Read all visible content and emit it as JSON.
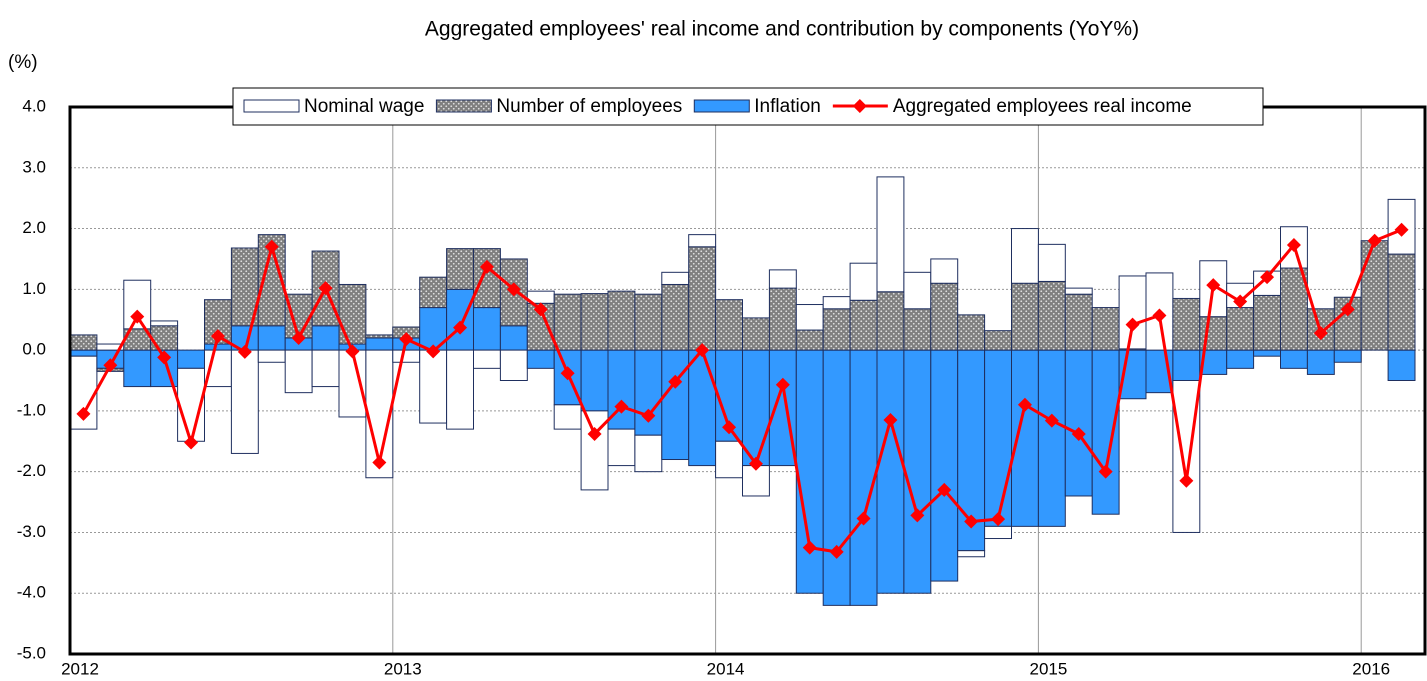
{
  "chart_data": {
    "type": "stacked-bar-line",
    "title": "Aggregated employees' real income and contribution by components (YoY%)",
    "y_axis_label": "(%)",
    "categories": [
      "2012",
      null,
      null,
      null,
      null,
      null,
      null,
      null,
      null,
      null,
      null,
      null,
      "2013",
      null,
      null,
      null,
      null,
      null,
      null,
      null,
      null,
      null,
      null,
      null,
      "2014",
      null,
      null,
      null,
      null,
      null,
      null,
      null,
      null,
      null,
      null,
      null,
      "2015",
      null,
      null,
      null,
      null,
      null,
      null,
      null,
      null,
      null,
      null,
      null,
      "2016",
      null
    ],
    "series": [
      {
        "name": "Nominal wage",
        "kind": "bar",
        "color": "#ffffff",
        "values": [
          -1.2,
          0.1,
          0.8,
          0.08,
          -1.2,
          -0.6,
          -1.7,
          -0.2,
          -0.7,
          -0.6,
          -1.1,
          -2.1,
          -0.2,
          -1.2,
          -1.3,
          -0.3,
          -0.5,
          0.2,
          -0.4,
          -1.3,
          -0.6,
          -0.6,
          0.2,
          0.2,
          -0.6,
          -0.5,
          0.3,
          0.42,
          0.2,
          0.61,
          1.89,
          0.6,
          0.4,
          -0.1,
          -0.2,
          0.9,
          0.61,
          0.1,
          0,
          1.2,
          1.27,
          -2.5,
          0.92,
          0.4,
          0.4,
          0.68,
          0,
          0,
          0,
          0.9
        ]
      },
      {
        "name": "Number of employees",
        "kind": "bar",
        "color": "#808080",
        "values": [
          0.25,
          -0.05,
          0.35,
          0.4,
          0,
          0.73,
          1.28,
          1.5,
          0.72,
          1.23,
          0.98,
          0.05,
          0.18,
          0.5,
          0.67,
          0.97,
          1.1,
          0.77,
          0.92,
          0.93,
          0.97,
          0.92,
          1.08,
          1.7,
          0.83,
          0.53,
          1.02,
          0.33,
          0.68,
          0.82,
          0.96,
          0.68,
          1.1,
          0.58,
          0.32,
          1.1,
          1.13,
          0.92,
          0.7,
          0.02,
          0,
          0.85,
          0.55,
          0.7,
          0.9,
          1.35,
          0.68,
          0.87,
          1.8,
          1.58
        ]
      },
      {
        "name": "Inflation",
        "kind": "bar",
        "color": "#3399ff",
        "values": [
          -0.1,
          -0.3,
          -0.6,
          -0.6,
          -0.3,
          0.1,
          0.4,
          0.4,
          0.2,
          0.4,
          0.1,
          0.2,
          0.2,
          0.7,
          1.0,
          0.7,
          0.4,
          -0.3,
          -0.9,
          -1.0,
          -1.3,
          -1.4,
          -1.8,
          -1.9,
          -1.5,
          -1.9,
          -1.9,
          -4.0,
          -4.2,
          -4.2,
          -4.0,
          -4.0,
          -3.8,
          -3.3,
          -2.9,
          -2.9,
          -2.9,
          -2.4,
          -2.7,
          -0.8,
          -0.7,
          -0.5,
          -0.4,
          -0.3,
          -0.1,
          -0.3,
          -0.4,
          -0.2,
          0,
          -0.5
        ]
      },
      {
        "name": "Aggregated employees real income",
        "kind": "line",
        "color": "#ff0000",
        "values": [
          -1.05,
          -0.25,
          0.55,
          -0.12,
          -1.52,
          0.23,
          -0.03,
          1.7,
          0.2,
          1.02,
          -0.02,
          -1.85,
          0.18,
          -0.02,
          0.37,
          1.37,
          1.0,
          0.67,
          -0.38,
          -1.38,
          -0.93,
          -1.08,
          -0.52,
          0.0,
          -1.27,
          -1.87,
          -0.57,
          -3.25,
          -3.32,
          -2.77,
          -1.15,
          -2.72,
          -2.3,
          -2.82,
          -2.78,
          -0.9,
          -1.16,
          -1.38,
          -2.0,
          0.42,
          0.57,
          -2.15,
          1.07,
          0.8,
          1.2,
          1.73,
          0.28,
          0.67,
          1.8,
          1.98
        ]
      }
    ],
    "ylim": [
      -5,
      4
    ],
    "yticks": [
      {
        "value": -5,
        "label": "-5.0"
      },
      {
        "value": -4,
        "label": "-4.0"
      },
      {
        "value": -3,
        "label": "-3.0"
      },
      {
        "value": -2,
        "label": "-2.0"
      },
      {
        "value": -1,
        "label": "-1.0"
      },
      {
        "value": 0,
        "label": "0.0"
      },
      {
        "value": 1,
        "label": "1.0"
      },
      {
        "value": 2,
        "label": "2.0"
      },
      {
        "value": 3,
        "label": "3.0"
      },
      {
        "value": 4,
        "label": "4.0"
      }
    ],
    "grid": true,
    "legend": "top"
  }
}
